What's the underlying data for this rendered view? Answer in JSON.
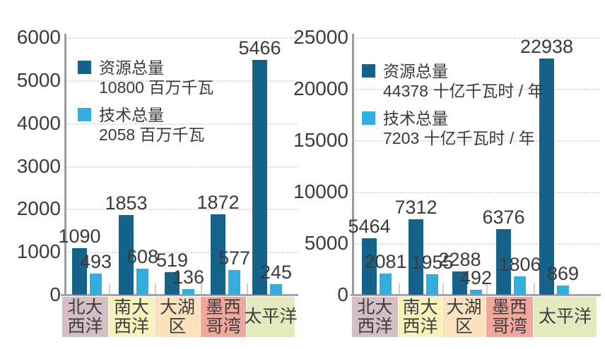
{
  "page": {
    "background_color": "#ffffff",
    "text_color": "#3b3b3b",
    "axis_color": "#9b9b9b",
    "grid_color": "#d9d9d9",
    "baseline_color": "#a9a1a7",
    "separator_color": "#d0d0d0"
  },
  "category_bands": [
    {
      "label_lines": [
        "北大",
        "西洋"
      ],
      "bg": "#d5bfc5"
    },
    {
      "label_lines": [
        "南大",
        "西洋"
      ],
      "bg": "#f6f2bb"
    },
    {
      "label_lines": [
        "大湖",
        "区"
      ],
      "bg": "#f9e2bd"
    },
    {
      "label_lines": [
        "墨西",
        "哥湾"
      ],
      "bg": "#f2a79d"
    },
    {
      "label_lines": [
        "太平洋"
      ],
      "bg": "#e3eabd"
    }
  ],
  "chart_data": [
    {
      "type": "bar",
      "title": "",
      "xlabel": "",
      "ylabel": "",
      "categories": [
        "北大西洋",
        "南大西洋",
        "大湖区",
        "墨西哥湾",
        "太平洋"
      ],
      "ylim": [
        0,
        6000
      ],
      "ytick_step": 1000,
      "ytick_labels": [
        "0",
        "1000",
        "2000",
        "3000",
        "4000",
        "5000",
        "6000"
      ],
      "grid": "dotted horizontal",
      "legend_position": "inside top-left",
      "show_value_labels": true,
      "series": [
        {
          "name": "资源总量",
          "legend_value_line": "10800 百万千瓦",
          "color": "#15628b",
          "values": [
            1090,
            1853,
            519,
            1872,
            5466
          ]
        },
        {
          "name": "技术总量",
          "legend_value_line": "2058 百万千瓦",
          "color": "#31ade0",
          "values": [
            493,
            608,
            136,
            577,
            245
          ]
        }
      ]
    },
    {
      "type": "bar",
      "title": "",
      "xlabel": "",
      "ylabel": "",
      "categories": [
        "北大西洋",
        "南大西洋",
        "大湖区",
        "墨西哥湾",
        "太平洋"
      ],
      "ylim": [
        0,
        25000
      ],
      "ytick_step": 5000,
      "ytick_labels": [
        "0",
        "5000",
        "10000",
        "15000",
        "20000",
        "25000"
      ],
      "grid": "dotted horizontal",
      "legend_position": "inside top-left",
      "show_value_labels": true,
      "series": [
        {
          "name": "资源总量",
          "legend_value_line": "44378 十亿千瓦时 / 年",
          "color": "#15628b",
          "values": [
            5464,
            7312,
            2288,
            6376,
            22938
          ]
        },
        {
          "name": "技术总量",
          "legend_value_line": "7203 十亿千瓦时 / 年",
          "color": "#31ade0",
          "values": [
            2081,
            1955,
            492,
            1806,
            869
          ]
        }
      ]
    }
  ]
}
